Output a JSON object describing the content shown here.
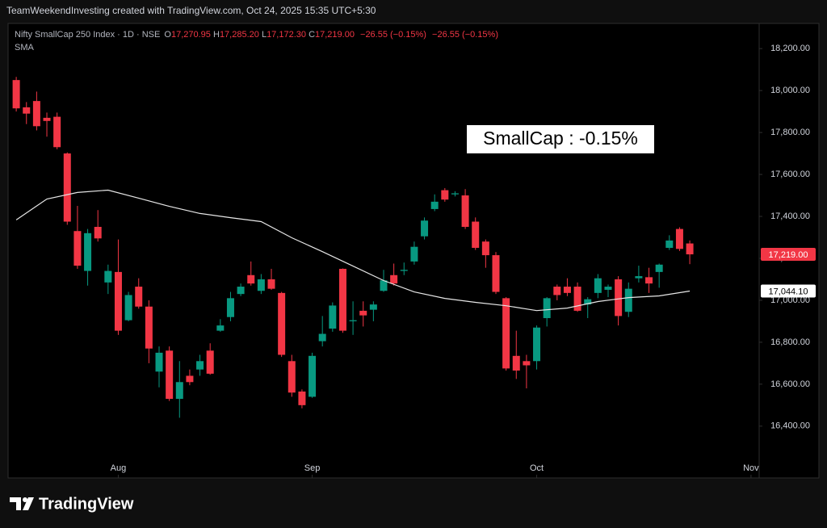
{
  "chart_data": {
    "type": "candlestick",
    "header": "TeamWeekendInvesting created with TradingView.com, Oct 24, 2025 15:35 UTC+5:30",
    "title": "Nifty SmallCap 250 Index · 1D · NSE",
    "ohlc_legend": [
      {
        "prefix": "O",
        "text": "17,270.95"
      },
      {
        "prefix": "H",
        "text": "17,285.20"
      },
      {
        "prefix": "L",
        "text": "17,172.30"
      },
      {
        "prefix": "C",
        "text": "17,219.00"
      }
    ],
    "change": [
      "−26.55 (−0.15%)",
      "−26.55 (−0.15%)"
    ],
    "annotation": "SmallCap : -0.15%",
    "brand": "TradingView",
    "up_color": "#089981",
    "down_color": "#f23645",
    "grid": false,
    "xlim": [
      -0.8,
      72.8
    ],
    "xticks": [
      {
        "value": 10,
        "label": "Aug"
      },
      {
        "value": 29,
        "label": "Sep"
      },
      {
        "value": 51,
        "label": "Oct"
      },
      {
        "value": 72,
        "label": "Nov"
      }
    ],
    "ylim": [
      16153,
      18320
    ],
    "yticks": [
      {
        "value": 16400,
        "label": "16,400.00"
      },
      {
        "value": 16600,
        "label": "16,600.00"
      },
      {
        "value": 16800,
        "label": "16,800.00"
      },
      {
        "value": 17000,
        "label": "17,000.00"
      },
      {
        "value": 17200,
        "label": "17,200.00"
      },
      {
        "value": 17400,
        "label": "17,400.00"
      },
      {
        "value": 17600,
        "label": "17,600.00"
      },
      {
        "value": 17800,
        "label": "17,800.00"
      },
      {
        "value": 18000,
        "label": "18,000.00"
      },
      {
        "value": 18200,
        "label": "18,200.00"
      }
    ],
    "open": [
      18050,
      17920,
      17950,
      17870,
      17875,
      17700,
      17330,
      17140,
      17350,
      17085,
      17135,
      16905,
      17065,
      16970,
      16660,
      16760,
      16530,
      16640,
      16670,
      16760,
      16855,
      16920,
      17030,
      17120,
      17045,
      17100,
      17035,
      16710,
      16565,
      16540,
      16805,
      16865,
      17150,
      16900,
      16950,
      16955,
      17045,
      17120,
      17140,
      17185,
      17305,
      17435,
      17525,
      17505,
      17500,
      17375,
      17280,
      17215,
      17010,
      16735,
      16710,
      16710,
      16915,
      17065,
      17065,
      17065,
      16980,
      17035,
      17050,
      17100,
      16945,
      17105,
      17110,
      17135,
      17250,
      17340,
      17270.95
    ],
    "high": [
      18065,
      17945,
      17995,
      17895,
      17895,
      17705,
      17450,
      17340,
      17430,
      17170,
      17290,
      17040,
      17105,
      17000,
      16780,
      16780,
      16710,
      16670,
      16740,
      16795,
      16910,
      17040,
      17080,
      17185,
      17125,
      17150,
      17040,
      16740,
      16575,
      16750,
      16925,
      16990,
      17152,
      16995,
      16995,
      16995,
      17145,
      17175,
      17180,
      17280,
      17395,
      17505,
      17535,
      17520,
      17530,
      17395,
      17290,
      17230,
      17015,
      16855,
      16740,
      16880,
      17015,
      17075,
      17105,
      17085,
      17015,
      17125,
      17075,
      17115,
      17085,
      17165,
      17155,
      17175,
      17310,
      17348,
      17285.2
    ],
    "low": [
      17900,
      17840,
      17810,
      17780,
      17720,
      17360,
      17150,
      17070,
      17280,
      17030,
      16835,
      16900,
      16960,
      16700,
      16585,
      16520,
      16440,
      16595,
      16640,
      16645,
      16850,
      16900,
      17020,
      17070,
      17030,
      17050,
      16730,
      16540,
      16485,
      16535,
      16780,
      16850,
      16845,
      16835,
      16875,
      16900,
      17040,
      17070,
      17120,
      17170,
      17290,
      17425,
      17470,
      17495,
      17340,
      17240,
      17155,
      17030,
      16665,
      16625,
      16580,
      16670,
      16875,
      17000,
      17020,
      16945,
      16915,
      17010,
      17015,
      16880,
      16920,
      17085,
      17035,
      17060,
      17240,
      17235,
      17172.3
    ],
    "close": [
      17915,
      17890,
      17830,
      17855,
      17730,
      17375,
      17165,
      17320,
      17295,
      17140,
      16855,
      17025,
      16970,
      16770,
      16750,
      16530,
      16610,
      16610,
      16710,
      16650,
      16880,
      17010,
      17065,
      17080,
      17100,
      17055,
      16740,
      16560,
      16500,
      16735,
      16840,
      16975,
      16855,
      16905,
      16928,
      16980,
      17095,
      17080,
      17145,
      17255,
      17380,
      17470,
      17480,
      17510,
      17350,
      17250,
      17215,
      17040,
      16675,
      16665,
      16690,
      16870,
      17010,
      17025,
      17035,
      16950,
      17005,
      17105,
      17065,
      16925,
      17055,
      17115,
      17080,
      17170,
      17285,
      17245,
      17219
    ],
    "close_label": "17,219.00",
    "overlays": [
      {
        "name": "SMA",
        "color": "#e6e6e6",
        "x": [
          0,
          3,
          6,
          9,
          12,
          15,
          18,
          21,
          24,
          27,
          30,
          33,
          36,
          39,
          42,
          45,
          48,
          51,
          54,
          57,
          60,
          63,
          66
        ],
        "values": [
          17383,
          17483,
          17514,
          17525,
          17487,
          17448,
          17414,
          17394,
          17375,
          17298,
          17232,
          17163,
          17094,
          17040,
          17009,
          16990,
          16974,
          16951,
          16963,
          16994,
          17013,
          17021,
          17044.1
        ],
        "last_label": "17,044.10"
      }
    ]
  }
}
